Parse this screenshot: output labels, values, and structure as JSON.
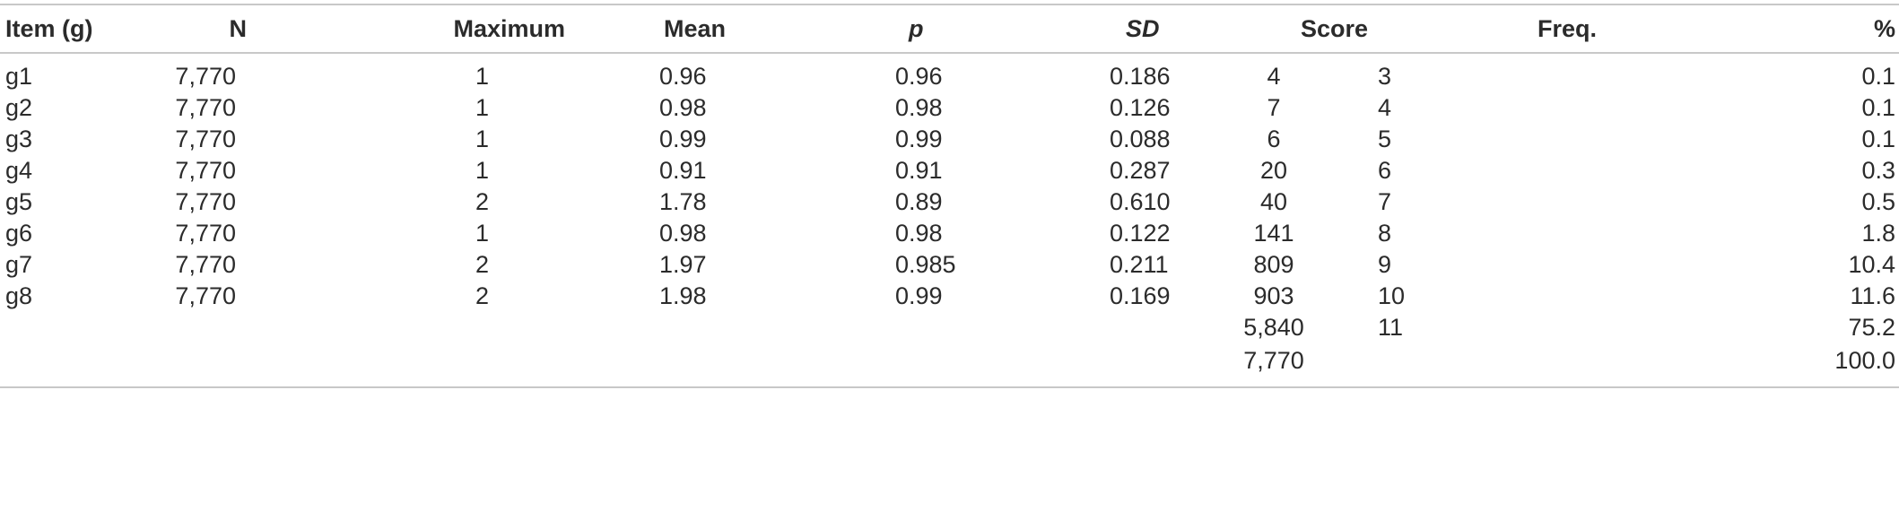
{
  "table": {
    "headers": [
      "Item (g)",
      "N",
      "Maximum",
      "Mean",
      "p",
      "SD",
      "Score",
      "Freq.",
      "%"
    ],
    "rows": [
      [
        "g1",
        "7,770",
        "1",
        "0.96",
        "0.96",
        "0.186",
        "3",
        "4",
        "0.1"
      ],
      [
        "g2",
        "7,770",
        "1",
        "0.98",
        "0.98",
        "0.126",
        "4",
        "7",
        "0.1"
      ],
      [
        "g3",
        "7,770",
        "1",
        "0.99",
        "0.99",
        "0.088",
        "5",
        "6",
        "0.1"
      ],
      [
        "g4",
        "7,770",
        "1",
        "0.91",
        "0.91",
        "0.287",
        "6",
        "20",
        "0.3"
      ],
      [
        "g5",
        "7,770",
        "2",
        "1.78",
        "0.89",
        "0.610",
        "7",
        "40",
        "0.5"
      ],
      [
        "g6",
        "7,770",
        "1",
        "0.98",
        "0.98",
        "0.122",
        "8",
        "141",
        "1.8"
      ],
      [
        "g7",
        "7,770",
        "2",
        "1.97",
        "0.985",
        "0.211",
        "9",
        "809",
        "10.4"
      ],
      [
        "g8",
        "7,770",
        "2",
        "1.98",
        "0.99",
        "0.169",
        "10",
        "903",
        "11.6"
      ],
      [
        "",
        "",
        "",
        "",
        "",
        "",
        "11",
        "5,840",
        "75.2"
      ],
      [
        "",
        "",
        "",
        "",
        "",
        "",
        "",
        "7,770",
        "100.0"
      ]
    ]
  }
}
